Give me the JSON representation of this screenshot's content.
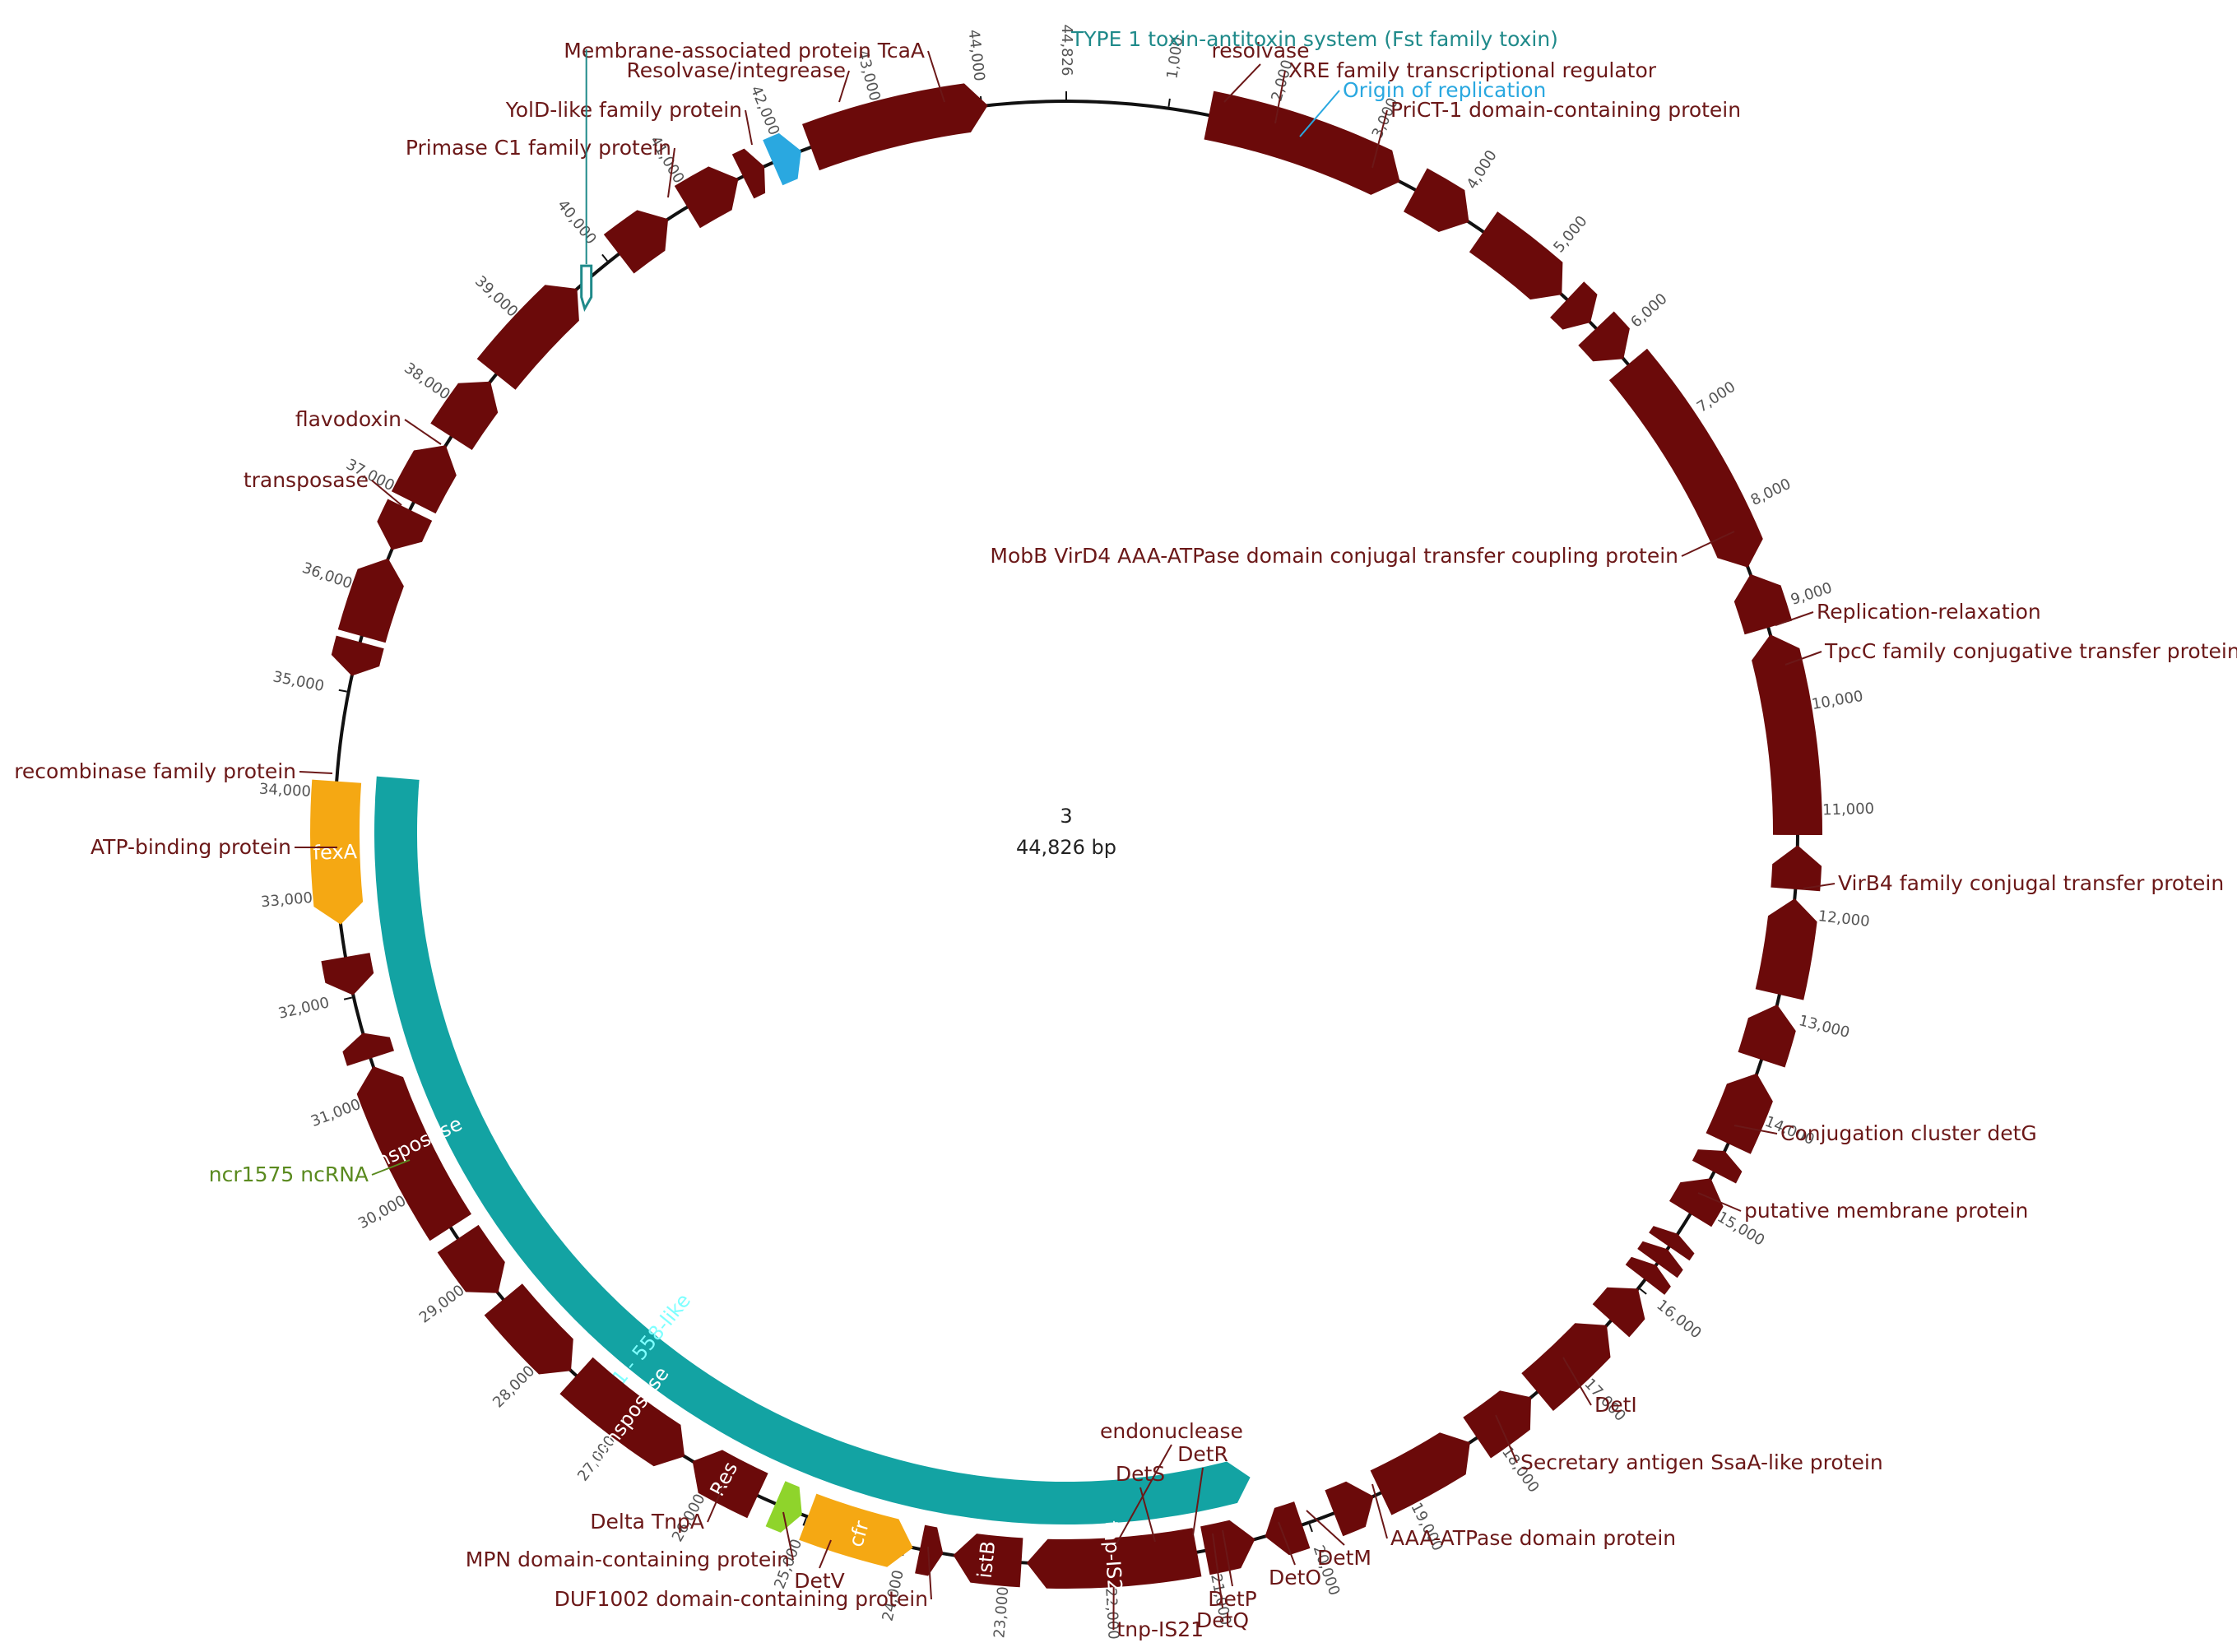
{
  "plasmid": {
    "name": "3",
    "length_label": "44,826 bp",
    "length": 44826
  },
  "colors": {
    "cds": "#6b0a0a",
    "resistance": "#f5a813",
    "mobile_element": "#13a3a3",
    "ncrna": "#8fd42b",
    "origin": "#2aa8e0",
    "toxin": "#1f8a8a",
    "backbone": "#111111",
    "feature_label": "#6b1818",
    "tick_label": "#555555"
  },
  "ticks": [
    {
      "pos": 1000,
      "label": "1,000"
    },
    {
      "pos": 2000,
      "label": "2,000"
    },
    {
      "pos": 3000,
      "label": "3,000"
    },
    {
      "pos": 4000,
      "label": "4,000"
    },
    {
      "pos": 5000,
      "label": "5,000"
    },
    {
      "pos": 6000,
      "label": "6,000"
    },
    {
      "pos": 7000,
      "label": "7,000"
    },
    {
      "pos": 8000,
      "label": "8,000"
    },
    {
      "pos": 9000,
      "label": "9,000"
    },
    {
      "pos": 10000,
      "label": "10,000"
    },
    {
      "pos": 11000,
      "label": "11,000"
    },
    {
      "pos": 12000,
      "label": "12,000"
    },
    {
      "pos": 13000,
      "label": "13,000"
    },
    {
      "pos": 14000,
      "label": "14,000"
    },
    {
      "pos": 15000,
      "label": "15,000"
    },
    {
      "pos": 16000,
      "label": "16,000"
    },
    {
      "pos": 17000,
      "label": "17,000"
    },
    {
      "pos": 18000,
      "label": "18,000"
    },
    {
      "pos": 19000,
      "label": "19,000"
    },
    {
      "pos": 20000,
      "label": "20,000"
    },
    {
      "pos": 21000,
      "label": "21,000"
    },
    {
      "pos": 22000,
      "label": "22,000"
    },
    {
      "pos": 23000,
      "label": "23,000"
    },
    {
      "pos": 24000,
      "label": "24,000"
    },
    {
      "pos": 25000,
      "label": "25,000"
    },
    {
      "pos": 26000,
      "label": "26,000"
    },
    {
      "pos": 27000,
      "label": "27,000"
    },
    {
      "pos": 28000,
      "label": "28,000"
    },
    {
      "pos": 29000,
      "label": "29,000"
    },
    {
      "pos": 30000,
      "label": "30,000"
    },
    {
      "pos": 31000,
      "label": "31,000"
    },
    {
      "pos": 32000,
      "label": "32,000"
    },
    {
      "pos": 33000,
      "label": "33,000"
    },
    {
      "pos": 34000,
      "label": "34,000"
    },
    {
      "pos": 35000,
      "label": "35,000"
    },
    {
      "pos": 36000,
      "label": "36,000"
    },
    {
      "pos": 37000,
      "label": "37,000"
    },
    {
      "pos": 38000,
      "label": "38,000"
    },
    {
      "pos": 39000,
      "label": "39,000"
    },
    {
      "pos": 40000,
      "label": "40,000"
    },
    {
      "pos": 41000,
      "label": "41,000"
    },
    {
      "pos": 42000,
      "label": "42,000"
    },
    {
      "pos": 43000,
      "label": "43,000"
    },
    {
      "pos": 44000,
      "label": "44,000"
    },
    {
      "pos": 44826,
      "label": "44,826"
    }
  ],
  "features": [
    {
      "id": "mobb",
      "label": "MobB VirD4 AAA-ATPase domain conjugal transfer coupling protein",
      "type": "cds",
      "start": 1400,
      "end": 3380,
      "strand": 1
    },
    {
      "id": "reprelax",
      "label": "Replication-relaxation",
      "type": "cds",
      "start": 3550,
      "end": 4160,
      "strand": 1
    },
    {
      "id": "tpcc",
      "label": "TpcC family conjugative transfer protein",
      "type": "cds",
      "start": 4330,
      "end": 5310,
      "strand": 1
    },
    {
      "id": "u1",
      "label": "",
      "type": "cds",
      "start": 5380,
      "end": 5700,
      "strand": 1
    },
    {
      "id": "u2",
      "label": "",
      "type": "cds",
      "start": 5780,
      "end": 6180,
      "strand": 1
    },
    {
      "id": "virb4",
      "label": "VirB4 family conjugal transfer protein",
      "type": "cds",
      "start": 6250,
      "end": 8560,
      "strand": 1
    },
    {
      "id": "detg",
      "label": "Conjugation cluster detG",
      "type": "cds",
      "start": 8630,
      "end": 9180,
      "strand": -1
    },
    {
      "id": "putmem",
      "label": "putative membrane protein",
      "type": "cds",
      "start": 9250,
      "end": 11230,
      "strand": -1
    },
    {
      "id": "deti",
      "label": "DetI",
      "type": "cds",
      "start": 11330,
      "end": 11760,
      "strand": -1
    },
    {
      "id": "ssaa",
      "label": "Secretary antigen SsaA-like protein",
      "type": "cds",
      "start": 11850,
      "end": 12800,
      "strand": -1
    },
    {
      "id": "u3",
      "label": "",
      "type": "cds",
      "start": 12900,
      "end": 13460,
      "strand": -1
    },
    {
      "id": "aaa",
      "label": "AAA-ATPase domain protein",
      "type": "cds",
      "start": 13600,
      "end": 14340,
      "strand": -1
    },
    {
      "id": "detm",
      "label": "DetM",
      "type": "cds",
      "start": 14420,
      "end": 14650,
      "strand": -1
    },
    {
      "id": "deto",
      "label": "DetO",
      "type": "cds",
      "start": 14720,
      "end": 15120,
      "strand": -1
    },
    {
      "id": "detp",
      "label": "DetP",
      "type": "cds",
      "start": 15350,
      "end": 15500,
      "strand": -1
    },
    {
      "id": "detq",
      "label": "DetQ",
      "type": "cds",
      "start": 15530,
      "end": 15700,
      "strand": -1
    },
    {
      "id": "detr",
      "label": "DetR",
      "type": "cds",
      "start": 15720,
      "end": 15900,
      "strand": -1
    },
    {
      "id": "dets",
      "label": "DetS",
      "type": "cds",
      "start": 16010,
      "end": 16420,
      "strand": -1
    },
    {
      "id": "endo",
      "label": "endonuclease",
      "type": "cds",
      "start": 16480,
      "end": 17420,
      "strand": -1
    },
    {
      "id": "u4",
      "label": "",
      "type": "cds",
      "start": 17500,
      "end": 18160,
      "strand": -1
    },
    {
      "id": "duf",
      "label": "DUF1002 domain-containing protein",
      "type": "cds",
      "start": 18240,
      "end": 19240,
      "strand": -1
    },
    {
      "id": "detv",
      "label": "DetV",
      "type": "cds",
      "start": 19320,
      "end": 19740,
      "strand": -1
    },
    {
      "id": "mpn",
      "label": "MPN domain-containing protein",
      "type": "cds",
      "start": 20070,
      "end": 20450,
      "strand": 1
    },
    {
      "id": "deltatnpa",
      "label": "Delta TnpA",
      "type": "cds",
      "start": 20550,
      "end": 21050,
      "strand": -1
    },
    {
      "id": "tnpis21",
      "label": "tnp-IS21",
      "inner": "tnp-IS21",
      "type": "cds",
      "start": 21130,
      "end": 22800,
      "strand": 1
    },
    {
      "id": "istb",
      "label": "",
      "inner": "istB",
      "type": "cds",
      "start": 22850,
      "end": 23520,
      "strand": 1
    },
    {
      "id": "u5",
      "label": "",
      "type": "cds",
      "start": 23620,
      "end": 23850,
      "strand": -1
    },
    {
      "id": "cfr",
      "label": "",
      "inner": "cfr",
      "type": "resistance",
      "start": 23920,
      "end": 24990,
      "strand": -1
    },
    {
      "id": "ncr",
      "label": "ncr1575 ncRNA",
      "type": "ncrna",
      "start": 25050,
      "end": 25330,
      "strand": -1
    },
    {
      "id": "res",
      "label": "",
      "inner": "Res",
      "type": "cds",
      "start": 25520,
      "end": 26240,
      "strand": 1
    },
    {
      "id": "transposase2",
      "label": "",
      "inner": "Transposase",
      "type": "cds",
      "start": 26330,
      "end": 27650,
      "strand": -1
    },
    {
      "id": "atpbind",
      "label": "ATP-binding protein",
      "type": "cds",
      "start": 27720,
      "end": 28680,
      "strand": -1
    },
    {
      "id": "recomb",
      "label": "recombinase family protein",
      "type": "cds",
      "start": 28760,
      "end": 29420,
      "strand": -1
    },
    {
      "id": "transposase1",
      "label": "",
      "inner": "transposase",
      "type": "cds",
      "start": 29550,
      "end": 31300,
      "strand": 1
    },
    {
      "id": "transposase_s",
      "label": "transposase",
      "type": "cds",
      "start": 31380,
      "end": 31640,
      "strand": 1
    },
    {
      "id": "flavodoxin",
      "label": "flavodoxin",
      "type": "cds",
      "start": 32020,
      "end": 32400,
      "strand": -1
    },
    {
      "id": "fexa",
      "label": "",
      "inner": "fexA",
      "type": "resistance",
      "start": 32720,
      "end": 34120,
      "strand": -1
    },
    {
      "id": "primase",
      "label": "Primase C1 family protein",
      "type": "cds",
      "start": 35160,
      "end": 35500,
      "strand": -1
    },
    {
      "id": "yoid",
      "label": "YolD-like family protein",
      "type": "cds",
      "start": 35560,
      "end": 36360,
      "strand": 1
    },
    {
      "id": "resint",
      "label": "Resolvase/integrease",
      "type": "cds",
      "start": 36450,
      "end": 36880,
      "strand": -1
    },
    {
      "id": "u6",
      "label": "",
      "type": "cds",
      "start": 36960,
      "end": 37600,
      "strand": 1
    },
    {
      "id": "tcaa",
      "label": "Membrane-associated protein TcaA",
      "type": "cds",
      "start": 37700,
      "end": 38360,
      "strand": 1
    },
    {
      "id": "u7",
      "label": "",
      "type": "cds",
      "start": 38450,
      "end": 39600,
      "strand": 1
    },
    {
      "id": "u8",
      "label": "",
      "type": "cds",
      "start": 40130,
      "end": 40720,
      "strand": 1
    },
    {
      "id": "resolvase",
      "label": "resolvase",
      "type": "cds",
      "start": 40940,
      "end": 41510,
      "strand": 1
    },
    {
      "id": "xre",
      "label": "XRE family transcriptional regulator",
      "type": "cds",
      "start": 41560,
      "end": 41790,
      "strand": 1
    },
    {
      "id": "ori",
      "label": "Origin of replication",
      "type": "origin",
      "start": 41880,
      "end": 42180,
      "strand": 1
    },
    {
      "id": "prict",
      "label": "PriCT-1 domain-containing protein",
      "type": "cds",
      "start": 42280,
      "end": 44060,
      "strand": 1
    }
  ],
  "mobile_element": {
    "label": "IS21 - 558-like",
    "start": 20430,
    "end": 34200,
    "strand": -1
  },
  "toxin": {
    "label": "TYPE 1 toxin-antitoxin system (Fst family toxin)",
    "pos": 39720
  }
}
